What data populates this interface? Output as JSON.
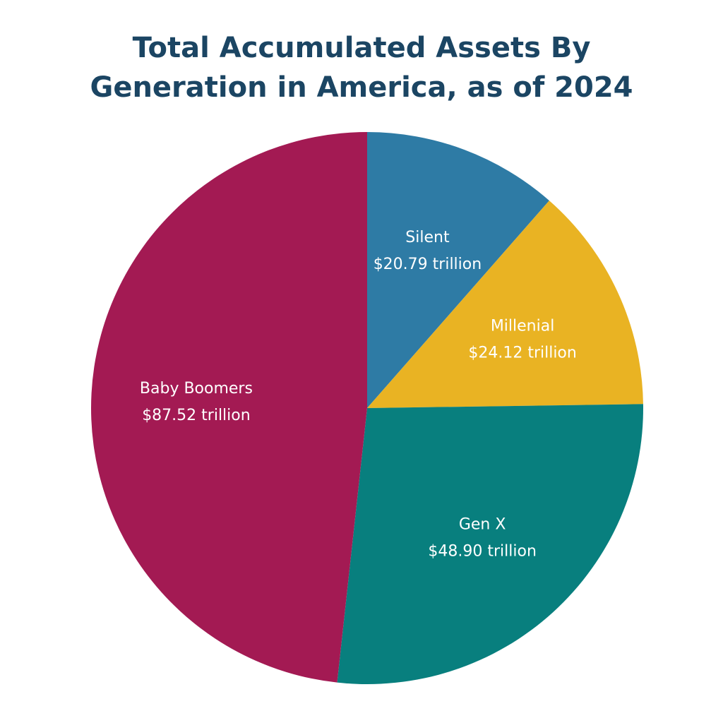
{
  "chart_data": {
    "type": "pie",
    "title_lines": [
      "Total Accumulated Assets By",
      "Generation in America, as of 2024"
    ],
    "slices": [
      {
        "label": "Silent",
        "value": 20.79,
        "value_label": "$20.79 trillion",
        "color": "#2e7ba5"
      },
      {
        "label": "Millenial",
        "value": 24.12,
        "value_label": "$24.12 trillion",
        "color": "#e9b323"
      },
      {
        "label": "Gen X",
        "value": 48.9,
        "value_label": "$48.90 trillion",
        "color": "#087f7e"
      },
      {
        "label": "Baby Boomers",
        "value": 87.52,
        "value_label": "$87.52 trillion",
        "color": "#a31a53"
      }
    ],
    "start_angle": "12 o'clock",
    "direction": "clockwise",
    "legend": "none, labels inside slices"
  }
}
